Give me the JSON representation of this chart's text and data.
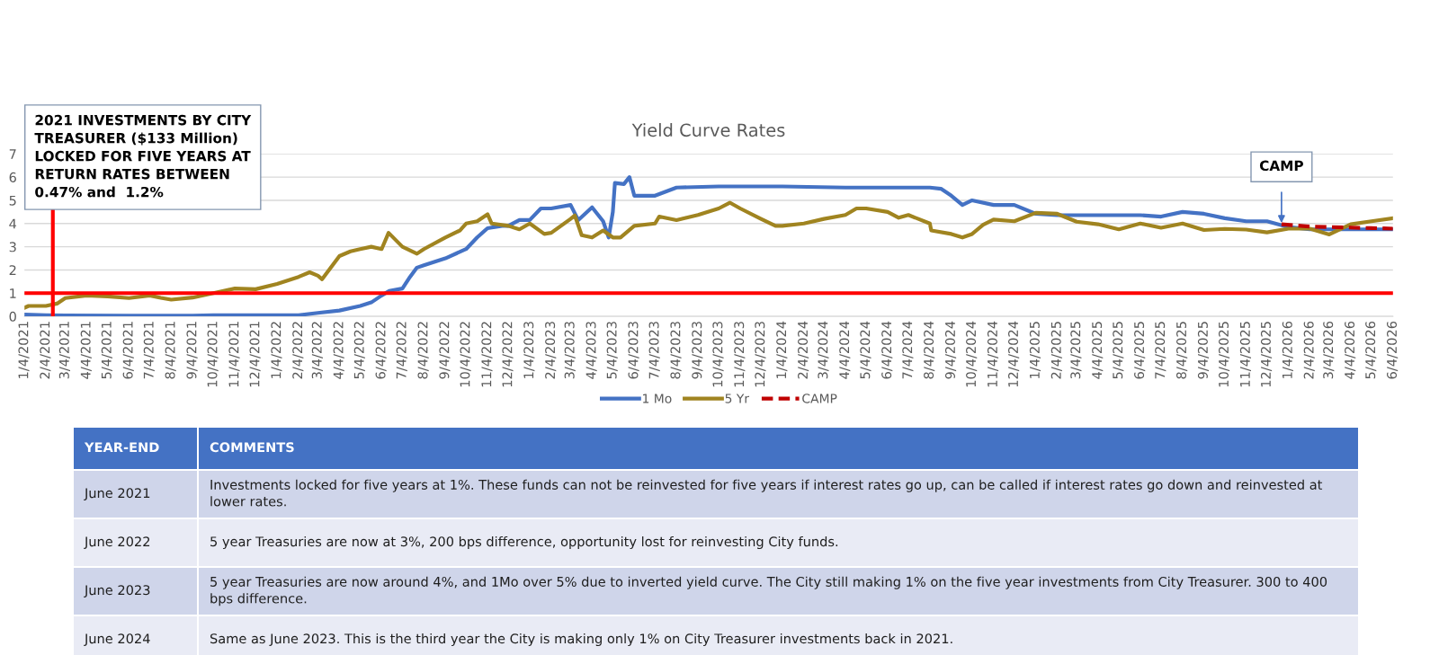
{
  "chart_data": {
    "type": "line",
    "title": "Yield Curve Rates",
    "xlim": [
      "2021-01-04",
      "2026-06-04"
    ],
    "ylim": [
      0,
      7
    ],
    "yticks": [
      0,
      1,
      2,
      3,
      4,
      5,
      6,
      7
    ],
    "xticks": [
      {
        "value": "2021-01-04",
        "label": "1/4/2021"
      },
      {
        "value": "2021-02-04",
        "label": "2/4/2021"
      },
      {
        "value": "2021-03-04",
        "label": "3/4/2021"
      },
      {
        "value": "2021-04-04",
        "label": "4/4/2021"
      },
      {
        "value": "2021-05-04",
        "label": "5/4/2021"
      },
      {
        "value": "2021-06-04",
        "label": "6/4/2021"
      },
      {
        "value": "2021-07-04",
        "label": "7/4/2021"
      },
      {
        "value": "2021-08-04",
        "label": "8/4/2021"
      },
      {
        "value": "2021-09-04",
        "label": "9/4/2021"
      },
      {
        "value": "2021-10-04",
        "label": "10/4/2021"
      },
      {
        "value": "2021-11-04",
        "label": "11/4/2021"
      },
      {
        "value": "2021-12-04",
        "label": "12/4/2021"
      },
      {
        "value": "2022-01-04",
        "label": "1/4/2022"
      },
      {
        "value": "2022-02-04",
        "label": "2/4/2022"
      },
      {
        "value": "2022-03-04",
        "label": "3/4/2022"
      },
      {
        "value": "2022-04-04",
        "label": "4/4/2022"
      },
      {
        "value": "2022-05-04",
        "label": "5/4/2022"
      },
      {
        "value": "2022-06-04",
        "label": "6/4/2022"
      },
      {
        "value": "2022-07-04",
        "label": "7/4/2022"
      },
      {
        "value": "2022-08-04",
        "label": "8/4/2022"
      },
      {
        "value": "2022-09-04",
        "label": "9/4/2022"
      },
      {
        "value": "2022-10-04",
        "label": "10/4/2022"
      },
      {
        "value": "2022-11-04",
        "label": "11/4/2022"
      },
      {
        "value": "2022-12-04",
        "label": "12/4/2022"
      },
      {
        "value": "2023-01-04",
        "label": "1/4/2023"
      },
      {
        "value": "2023-02-04",
        "label": "2/4/2023"
      },
      {
        "value": "2023-03-04",
        "label": "3/4/2023"
      },
      {
        "value": "2023-04-04",
        "label": "4/4/2023"
      },
      {
        "value": "2023-05-04",
        "label": "5/4/2023"
      },
      {
        "value": "2023-06-04",
        "label": "6/4/2023"
      },
      {
        "value": "2023-07-04",
        "label": "7/4/2023"
      },
      {
        "value": "2023-08-04",
        "label": "8/4/2023"
      },
      {
        "value": "2023-09-04",
        "label": "9/4/2023"
      },
      {
        "value": "2023-10-04",
        "label": "10/4/2023"
      },
      {
        "value": "2023-11-04",
        "label": "11/4/2023"
      },
      {
        "value": "2023-12-04",
        "label": "12/4/2023"
      },
      {
        "value": "2024-01-04",
        "label": "1/4/2024"
      },
      {
        "value": "2024-02-04",
        "label": "2/4/2024"
      },
      {
        "value": "2024-03-04",
        "label": "3/4/2024"
      },
      {
        "value": "2024-04-04",
        "label": "4/4/2024"
      },
      {
        "value": "2024-05-04",
        "label": "5/4/2024"
      },
      {
        "value": "2024-06-04",
        "label": "6/4/2024"
      },
      {
        "value": "2024-07-04",
        "label": "7/4/2024"
      },
      {
        "value": "2024-08-04",
        "label": "8/4/2024"
      },
      {
        "value": "2024-09-04",
        "label": "9/4/2024"
      },
      {
        "value": "2024-10-04",
        "label": "10/4/2024"
      },
      {
        "value": "2024-11-04",
        "label": "11/4/2024"
      },
      {
        "value": "2024-12-04",
        "label": "12/4/2024"
      },
      {
        "value": "2025-01-04",
        "label": "1/4/2025"
      },
      {
        "value": "2025-02-04",
        "label": "2/4/2025"
      },
      {
        "value": "2025-03-04",
        "label": "3/4/2025"
      },
      {
        "value": "2025-04-04",
        "label": "4/4/2025"
      },
      {
        "value": "2025-05-04",
        "label": "5/4/2025"
      },
      {
        "value": "2025-06-04",
        "label": "6/4/2025"
      },
      {
        "value": "2025-07-04",
        "label": "7/4/2025"
      },
      {
        "value": "2025-08-04",
        "label": "8/4/2025"
      },
      {
        "value": "2025-09-04",
        "label": "9/4/2025"
      },
      {
        "value": "2025-10-04",
        "label": "10/4/2025"
      },
      {
        "value": "2025-11-04",
        "label": "11/4/2025"
      },
      {
        "value": "2025-12-04",
        "label": "12/4/2025"
      },
      {
        "value": "2026-01-04",
        "label": "1/4/2026"
      },
      {
        "value": "2026-02-04",
        "label": "2/4/2026"
      },
      {
        "value": "2026-03-04",
        "label": "3/4/2026"
      },
      {
        "value": "2026-04-04",
        "label": "4/4/2026"
      },
      {
        "value": "2026-05-04",
        "label": "5/4/2026"
      },
      {
        "value": "2026-06-04",
        "label": "6/4/2026"
      }
    ],
    "series": [
      {
        "name": "1 Mo",
        "color": "#4472c4",
        "x": [
          "2021-01-04",
          "2021-02-04",
          "2021-03-04",
          "2021-06-04",
          "2021-09-04",
          "2021-10-04",
          "2021-12-04",
          "2022-02-04",
          "2022-03-04",
          "2022-04-04",
          "2022-05-04",
          "2022-05-20",
          "2022-06-04",
          "2022-06-15",
          "2022-07-04",
          "2022-07-15",
          "2022-07-25",
          "2022-08-04",
          "2022-09-04",
          "2022-10-04",
          "2022-10-20",
          "2022-11-04",
          "2022-11-25",
          "2022-12-04",
          "2022-12-20",
          "2023-01-04",
          "2023-01-20",
          "2023-02-04",
          "2023-03-04",
          "2023-03-15",
          "2023-04-04",
          "2023-04-20",
          "2023-04-28",
          "2023-05-04",
          "2023-05-07",
          "2023-05-20",
          "2023-05-28",
          "2023-06-04",
          "2023-07-04",
          "2023-08-04",
          "2023-10-04",
          "2024-01-04",
          "2024-04-04",
          "2024-07-04",
          "2024-08-04",
          "2024-08-20",
          "2024-09-04",
          "2024-09-20",
          "2024-10-04",
          "2024-11-04",
          "2024-12-04",
          "2025-01-04",
          "2025-02-04",
          "2025-06-04",
          "2025-07-04",
          "2025-08-04",
          "2025-09-04",
          "2025-10-04",
          "2025-11-04",
          "2025-12-04",
          "2026-01-04",
          "2026-02-04",
          "2026-06-04"
        ],
        "values": [
          0.08,
          0.05,
          0.04,
          0.03,
          0.03,
          0.05,
          0.05,
          0.05,
          0.15,
          0.25,
          0.45,
          0.6,
          0.9,
          1.1,
          1.2,
          1.7,
          2.1,
          2.2,
          2.5,
          2.9,
          3.4,
          3.8,
          3.9,
          3.9,
          4.15,
          4.15,
          4.65,
          4.65,
          4.8,
          4.15,
          4.7,
          4.1,
          3.4,
          4.5,
          5.75,
          5.7,
          6.0,
          5.2,
          5.2,
          5.55,
          5.6,
          5.6,
          5.55,
          5.55,
          5.55,
          5.5,
          5.2,
          4.8,
          5.0,
          4.8,
          4.8,
          4.42,
          4.36,
          4.36,
          4.3,
          4.5,
          4.42,
          4.23,
          4.1,
          4.1,
          3.85,
          3.75,
          3.75
        ]
      },
      {
        "name": "5 Yr",
        "color": "#a08420",
        "x": [
          "2021-01-04",
          "2021-01-10",
          "2021-02-04",
          "2021-02-20",
          "2021-03-04",
          "2021-04-04",
          "2021-05-04",
          "2021-06-04",
          "2021-07-04",
          "2021-07-20",
          "2021-08-04",
          "2021-09-04",
          "2021-10-04",
          "2021-11-04",
          "2021-12-04",
          "2022-01-04",
          "2022-02-04",
          "2022-02-20",
          "2022-03-04",
          "2022-03-10",
          "2022-04-04",
          "2022-04-20",
          "2022-05-04",
          "2022-05-20",
          "2022-06-04",
          "2022-06-14",
          "2022-07-04",
          "2022-07-25",
          "2022-08-04",
          "2022-09-04",
          "2022-09-25",
          "2022-10-04",
          "2022-10-20",
          "2022-11-04",
          "2022-11-10",
          "2022-12-04",
          "2022-12-20",
          "2023-01-04",
          "2023-01-25",
          "2023-02-04",
          "2023-03-04",
          "2023-03-10",
          "2023-03-20",
          "2023-04-04",
          "2023-04-20",
          "2023-05-04",
          "2023-05-15",
          "2023-06-04",
          "2023-07-04",
          "2023-07-10",
          "2023-08-04",
          "2023-09-04",
          "2023-10-04",
          "2023-10-20",
          "2023-11-04",
          "2023-12-04",
          "2023-12-25",
          "2024-01-04",
          "2024-02-04",
          "2024-03-04",
          "2024-04-04",
          "2024-04-20",
          "2024-05-04",
          "2024-06-04",
          "2024-06-20",
          "2024-07-04",
          "2024-08-04",
          "2024-08-06",
          "2024-09-04",
          "2024-09-20",
          "2024-10-04",
          "2024-10-20",
          "2024-11-04",
          "2024-12-04",
          "2025-01-04",
          "2025-02-04",
          "2025-03-04",
          "2025-04-04",
          "2025-05-04",
          "2025-06-04",
          "2025-07-04",
          "2025-08-04",
          "2025-09-04",
          "2025-10-04",
          "2025-11-04",
          "2025-12-04",
          "2026-01-04",
          "2026-02-04",
          "2026-03-04",
          "2026-04-04",
          "2026-05-04",
          "2026-06-04"
        ],
        "values": [
          0.37,
          0.45,
          0.45,
          0.55,
          0.79,
          0.9,
          0.86,
          0.79,
          0.9,
          0.8,
          0.72,
          0.81,
          1.0,
          1.2,
          1.17,
          1.4,
          1.7,
          1.9,
          1.75,
          1.6,
          2.6,
          2.8,
          2.9,
          3.0,
          2.9,
          3.6,
          3.0,
          2.7,
          2.9,
          3.4,
          3.7,
          4.0,
          4.1,
          4.4,
          4.0,
          3.9,
          3.75,
          4.0,
          3.55,
          3.6,
          4.2,
          4.35,
          3.5,
          3.4,
          3.7,
          3.4,
          3.4,
          3.9,
          4.0,
          4.3,
          4.15,
          4.37,
          4.65,
          4.9,
          4.65,
          4.2,
          3.9,
          3.9,
          4.0,
          4.2,
          4.37,
          4.65,
          4.65,
          4.5,
          4.25,
          4.37,
          4.0,
          3.7,
          3.55,
          3.4,
          3.55,
          3.95,
          4.17,
          4.1,
          4.46,
          4.42,
          4.08,
          3.97,
          3.75,
          4.0,
          3.82,
          4.0,
          3.72,
          3.77,
          3.74,
          3.62,
          3.78,
          3.78,
          3.53,
          3.97,
          4.1,
          4.23
        ]
      },
      {
        "name": "CAMP",
        "color": "#c00000",
        "line_style": "dashed",
        "x": [
          "2025-12-25",
          "2026-02-04",
          "2026-06-04"
        ],
        "values": [
          3.97,
          3.87,
          3.78
        ]
      }
    ],
    "ref_lines": [
      {
        "axis": "y",
        "value": 1,
        "color": "#ff0000"
      },
      {
        "axis": "x",
        "value": "2021-02-14",
        "color": "#ff0000"
      }
    ],
    "grid": "y",
    "legend": "bottom",
    "line_style": "solid",
    "annotations": [
      "2021 INVESTMENTS BY CITY TREASURER ($133 Million) LOCKED FOR FIVE YEARS AT RETURN RATES BETWEEN 0.47% and  1.2%",
      "CAMP",
      "YEAR-END",
      "COMMENTS",
      "June 2021",
      "Investments locked for five years at 1%. These funds can not be reinvested for five years if interest rates go up, can be called if interest rates go down and reinvested at lower rates.",
      "June 2022",
      "5 year Treasuries are now at 3%, 200 bps difference, opportunity lost for reinvesting City funds.",
      "June 2023",
      "5 year Treasuries are now around 4%, and 1Mo over 5% due to inverted yield curve. The City still making 1% on the five year investments from City Treasurer. 300 to 400 bps difference.",
      "June 2024",
      "Same as June 2023. This is the third year the City is making only 1% on City Treasurer investments back in 2021."
    ]
  }
}
